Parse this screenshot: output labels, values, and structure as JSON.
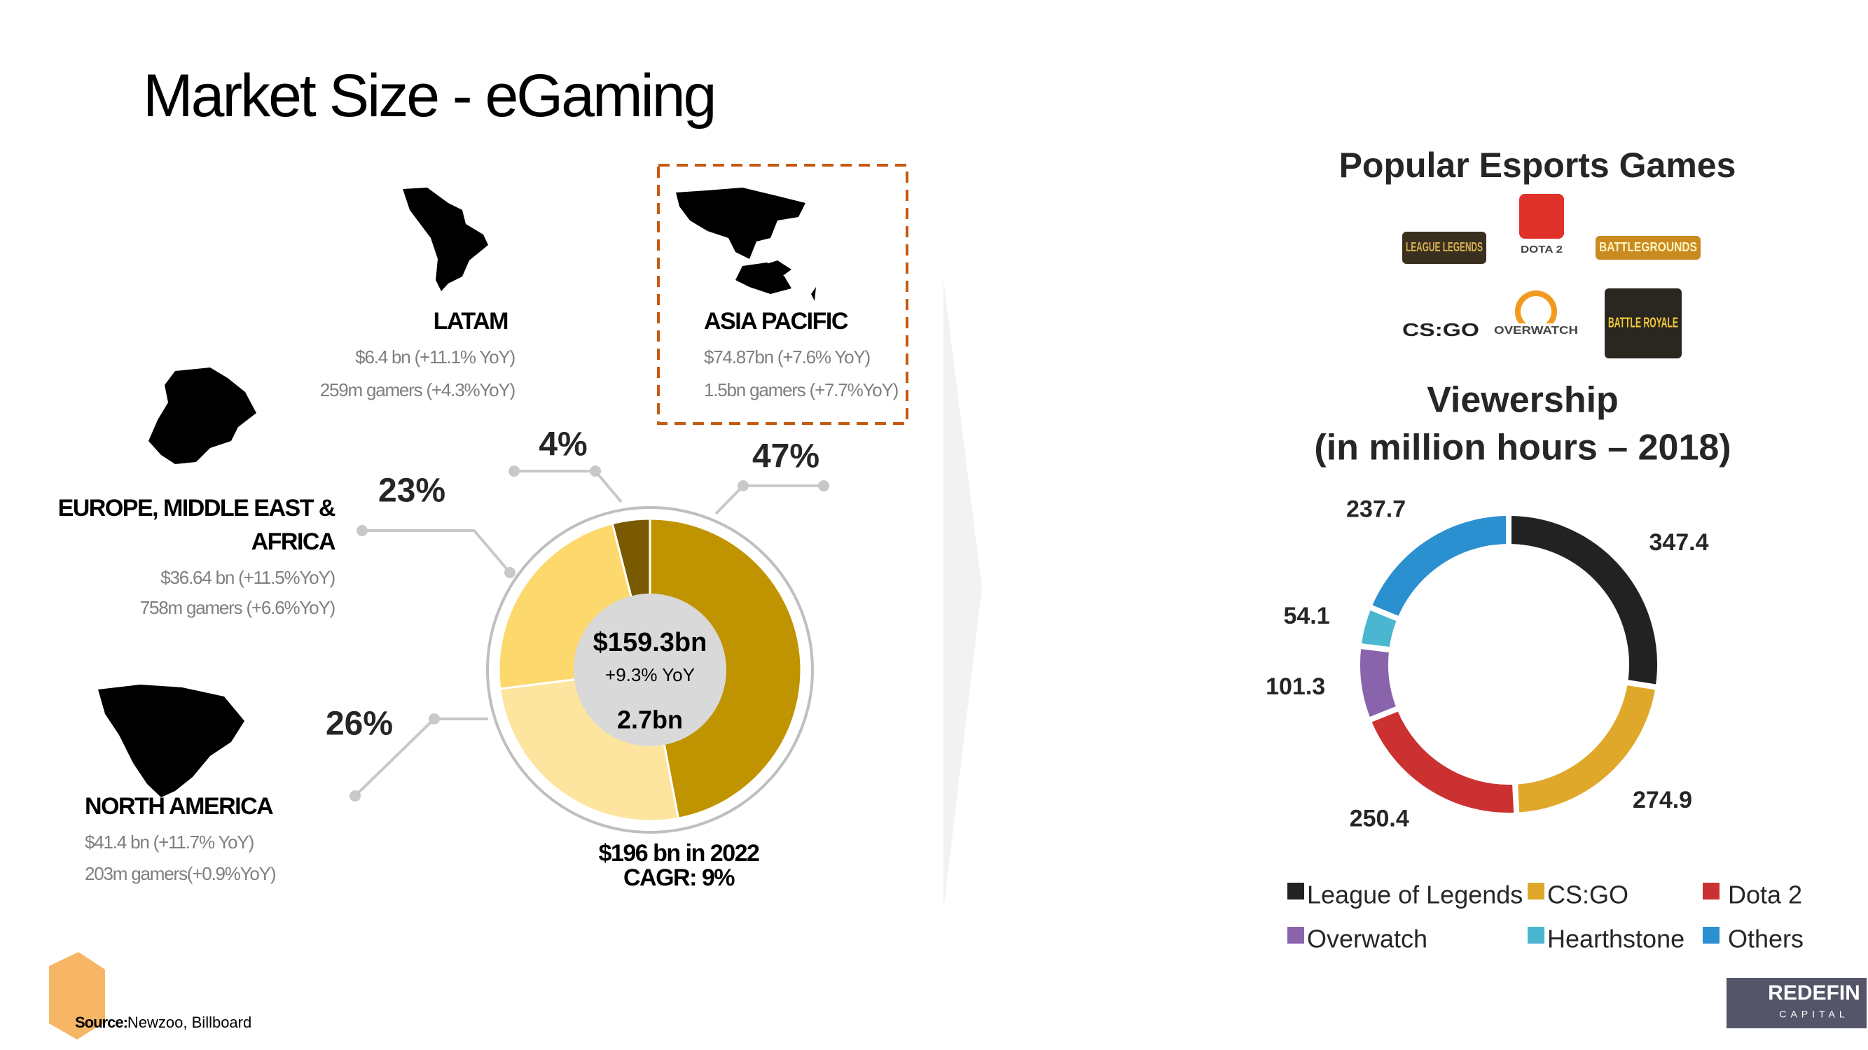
{
  "header": {
    "title": "Market Size - eGaming"
  },
  "regions": [
    {
      "revenue": "$74.87bn (+7.6% YoY)",
      "gamers": "1.5bn gamers (+7.7%YoY)"
    },
    {
      "revenue": "$41.4 bn (+11.7% YoY)",
      "gamers": "203m gamers(+0.9%YoY)"
    },
    {
      "revenue": "$36.64 bn (+11.5%YoY)",
      "gamers": "758m gamers (+6.6%YoY)"
    },
    {
      "revenue": "$6.4 bn (+11.1% YoY)",
      "gamers": "259m gamers (+4.3%YoY)"
    }
  ],
  "games": {
    "title": "Popular Esports Games",
    "logos": [
      "LEAGUE LEGENDS",
      "DOTA 2",
      "BATTLEGROUNDS",
      "CS:GO",
      "OVERWATCH",
      "BATTLE ROYALE"
    ]
  },
  "chart_data": [
    {
      "type": "donut",
      "categories": [
        "ASIA PACIFIC",
        "NORTH AMERICA",
        "EUROPE, MIDDLE EAST & AFRICA",
        "LATAM"
      ],
      "values": [
        47,
        26,
        23,
        4
      ],
      "value_labels": [
        "47%",
        "26%",
        "23%",
        "4%"
      ],
      "colors": [
        "#c09400",
        "#fde59f",
        "#fdd86c",
        "#7a5a00"
      ],
      "center": {
        "total": "$159.3bn",
        "growth": "+9.3% YoY",
        "gamers": "2.7bn"
      },
      "forecast": "$196 bn in 2022",
      "cagr": "CAGR: 9%"
    },
    {
      "type": "donut",
      "title": [
        "Viewership",
        "(in million hours – 2018)"
      ],
      "categories": [
        "League of Legends",
        "CS:GO",
        "Dota 2",
        "Overwatch",
        "Hearthstone",
        "Others"
      ],
      "values": [
        347.4,
        274.9,
        250.4,
        101.3,
        54.1,
        237.7
      ],
      "colors": [
        "#222222",
        "#e0a82a",
        "#cc3131",
        "#8a63ad",
        "#4bb6cf",
        "#2a90cf"
      ],
      "legend": "bottom"
    }
  ],
  "footer": {
    "source_label": "Source:",
    "source": "Newzoo, Billboard",
    "brand": "REDEFIN",
    "brand_sub": "CAPITAL"
  }
}
